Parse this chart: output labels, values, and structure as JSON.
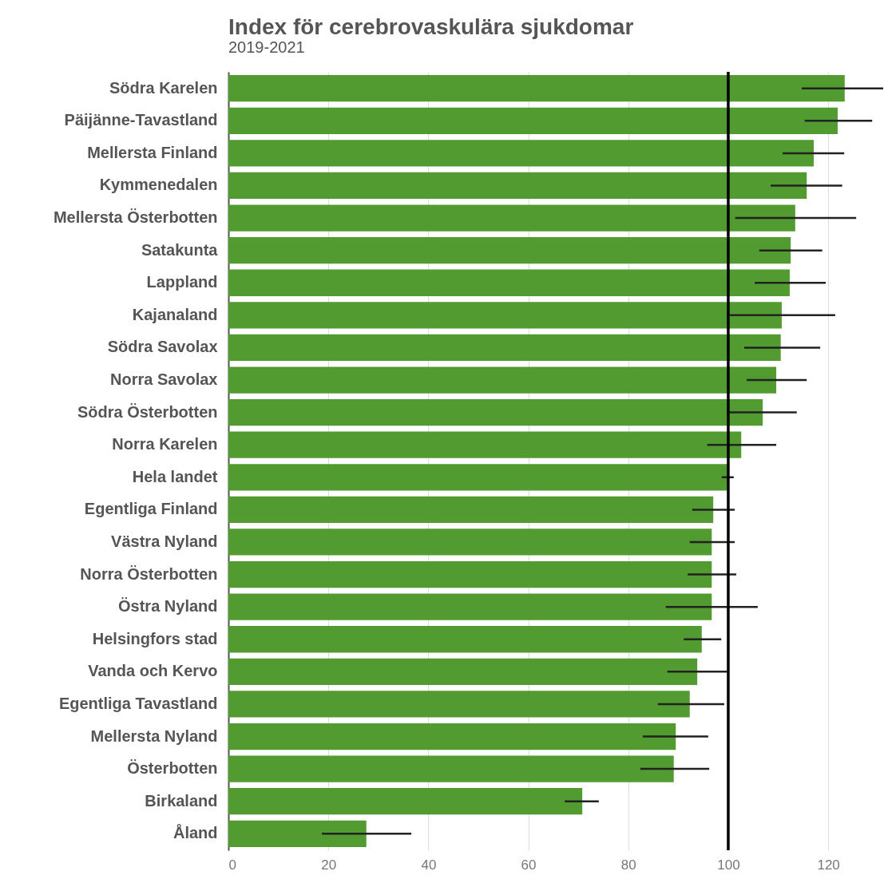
{
  "chart_data": {
    "type": "bar",
    "orientation": "horizontal",
    "title": "Index för cerebrovaskulära sjukdomar",
    "subtitle": "2019-2021",
    "categories": [
      "Södra Karelen",
      "Päijänne-Tavastland",
      "Mellersta Finland",
      "Kymmenedalen",
      "Mellersta Österbotten",
      "Satakunta",
      "Lappland",
      "Kajanaland",
      "Södra Savolax",
      "Norra Savolax",
      "Södra Österbotten",
      "Norra Karelen",
      "Hela landet",
      "Egentliga Finland",
      "Västra Nyland",
      "Norra Österbotten",
      "Östra Nyland",
      "Helsingfors stad",
      "Vanda och Kervo",
      "Egentliga Tavastland",
      "Mellersta Nyland",
      "Österbotten",
      "Birkaland",
      "Åland"
    ],
    "values": [
      123.3,
      121.9,
      117.1,
      115.7,
      113.4,
      112.5,
      112.3,
      110.7,
      110.5,
      109.6,
      106.9,
      102.6,
      100,
      97.0,
      96.7,
      96.7,
      96.7,
      94.7,
      93.8,
      92.3,
      89.5,
      89.1,
      70.8,
      27.6
    ],
    "errors": [
      [
        114.7,
        131
      ],
      [
        115.3,
        128.8
      ],
      [
        110.9,
        123.2
      ],
      [
        108.5,
        122.8
      ],
      [
        101.4,
        125.6
      ],
      [
        106.2,
        118.8
      ],
      [
        105.3,
        119.5
      ],
      [
        100.3,
        121.4
      ],
      [
        103.2,
        118.4
      ],
      [
        103.7,
        115.7
      ],
      [
        100.2,
        113.7
      ],
      [
        95.8,
        109.6
      ],
      [
        98.7,
        101.1
      ],
      [
        92.8,
        101.3
      ],
      [
        92.3,
        101.3
      ],
      [
        91.9,
        101.6
      ],
      [
        87.5,
        105.9
      ],
      [
        91.1,
        98.6
      ],
      [
        87.8,
        99.8
      ],
      [
        85.9,
        99.2
      ],
      [
        82.9,
        96.0
      ],
      [
        82.4,
        96.2
      ],
      [
        67.3,
        74.1
      ],
      [
        18.7,
        36.6
      ]
    ],
    "color": "#529b30",
    "xlim": [
      0,
      131
    ],
    "xticks": [
      0,
      20,
      40,
      60,
      80,
      100,
      120
    ],
    "ref_lines": [
      {
        "axis": "x",
        "value": 100,
        "color": "#000000"
      }
    ],
    "grid": "x"
  }
}
